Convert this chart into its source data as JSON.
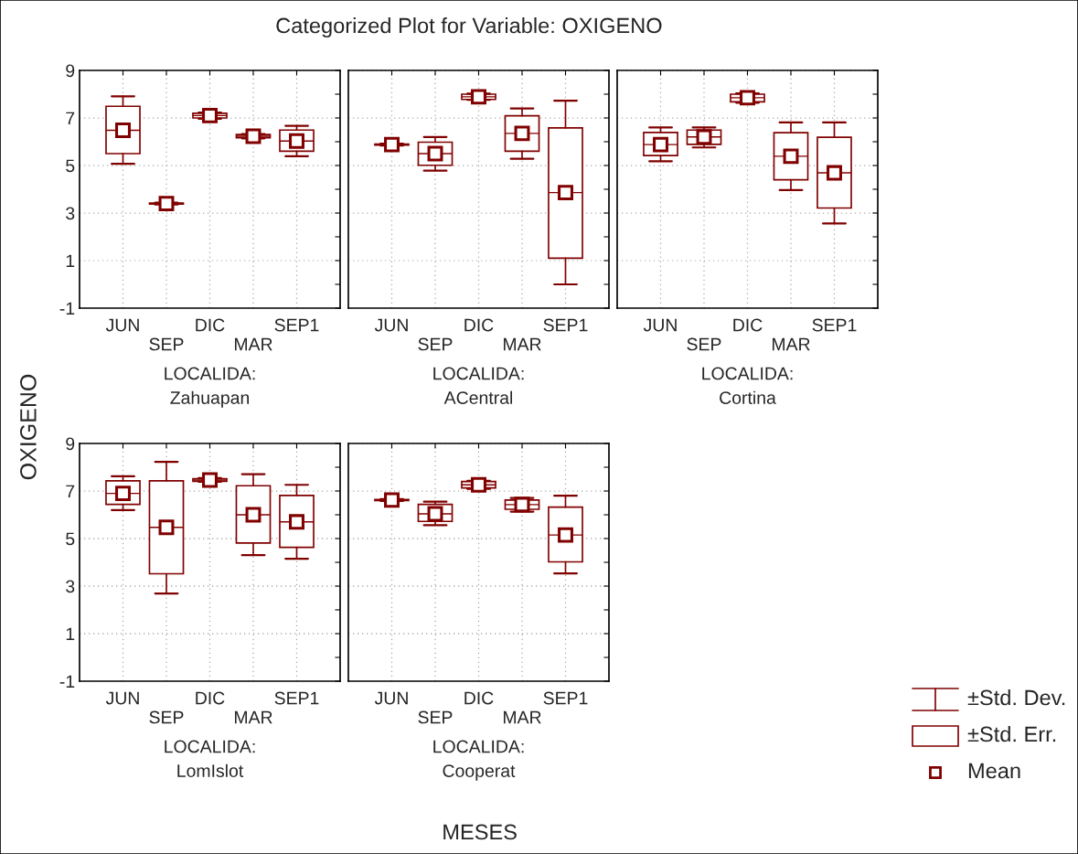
{
  "chart_data": [
    {
      "type": "box",
      "title": "Categorized Plot for Variable: OXIGENO",
      "ylabel": "OXIGENO",
      "xlabel": "LOCALIDA:\nZahuapan",
      "annotations": [
        "MESES"
      ],
      "categories": [
        "JUN",
        "SEP",
        "DIC",
        "MAR",
        "SEP1"
      ],
      "ylim": [
        -1,
        9
      ],
      "yticks": [
        -1,
        {
          "value": 0,
          "label": null
        },
        1,
        {
          "value": 2,
          "label": null
        },
        3,
        {
          "value": 4,
          "label": null
        },
        5,
        {
          "value": 6,
          "label": null
        },
        7,
        {
          "value": 8,
          "label": null
        },
        9
      ],
      "grid": true,
      "marker": "square",
      "series": [
        {
          "color": "#800000",
          "boxes": [
            {
              "low": 5.07,
              "q1": 5.5,
              "median": 6.48,
              "q3": 7.49,
              "high": 7.91,
              "mean": 6.48
            },
            {
              "low": 3.36,
              "q1": 3.38,
              "median": 3.4,
              "q3": 3.42,
              "high": 3.44,
              "mean": 3.4
            },
            {
              "low": 6.97,
              "q1": 7.0,
              "median": 7.1,
              "q3": 7.2,
              "high": 7.23,
              "mean": 7.1
            },
            {
              "low": 6.14,
              "q1": 6.17,
              "median": 6.23,
              "q3": 6.3,
              "high": 6.32,
              "mean": 6.23
            },
            {
              "low": 5.39,
              "q1": 5.6,
              "median": 6.03,
              "q3": 6.49,
              "high": 6.67,
              "mean": 6.03
            }
          ]
        }
      ]
    },
    {
      "type": "box",
      "xlabel": "LOCALIDA:\nACentral",
      "categories": [
        "JUN",
        "SEP",
        "DIC",
        "MAR",
        "SEP1"
      ],
      "ylim": [
        -1,
        9
      ],
      "yticks": [
        -1,
        {
          "value": 0,
          "label": null
        },
        1,
        {
          "value": 2,
          "label": null
        },
        3,
        {
          "value": 4,
          "label": null
        },
        5,
        {
          "value": 6,
          "label": null
        },
        7,
        {
          "value": 8,
          "label": null
        },
        9
      ],
      "grid": true,
      "marker": "square",
      "tick_labels": "x",
      "series": [
        {
          "color": "#800000",
          "boxes": [
            {
              "low": 5.84,
              "q1": 5.86,
              "median": 5.88,
              "q3": 5.9,
              "high": 5.92,
              "mean": 5.88
            },
            {
              "low": 4.78,
              "q1": 5.01,
              "median": 5.5,
              "q3": 5.98,
              "high": 6.2,
              "mean": 5.5
            },
            {
              "low": 7.76,
              "q1": 7.78,
              "median": 7.89,
              "q3": 8.0,
              "high": 8.02,
              "mean": 7.89
            },
            {
              "low": 5.28,
              "q1": 5.6,
              "median": 6.35,
              "q3": 7.09,
              "high": 7.4,
              "mean": 6.35
            },
            {
              "low": 0.0,
              "q1": 1.1,
              "median": 3.86,
              "q3": 6.58,
              "high": 7.73,
              "mean": 3.86
            }
          ]
        }
      ]
    },
    {
      "type": "box",
      "xlabel": "LOCALIDA:\nCortina",
      "categories": [
        "JUN",
        "SEP",
        "DIC",
        "MAR",
        "SEP1"
      ],
      "ylim": [
        -1,
        9
      ],
      "yticks": [
        -1,
        {
          "value": 0,
          "label": null
        },
        1,
        {
          "value": 2,
          "label": null
        },
        3,
        {
          "value": 4,
          "label": null
        },
        5,
        {
          "value": 6,
          "label": null
        },
        7,
        {
          "value": 8,
          "label": null
        },
        9
      ],
      "grid": true,
      "marker": "square",
      "tick_labels": "x",
      "series": [
        {
          "color": "#800000",
          "boxes": [
            {
              "low": 5.18,
              "q1": 5.42,
              "median": 5.88,
              "q3": 6.39,
              "high": 6.6,
              "mean": 5.88
            },
            {
              "low": 5.76,
              "q1": 5.89,
              "median": 6.2,
              "q3": 6.49,
              "high": 6.6,
              "mean": 6.2
            },
            {
              "low": 7.64,
              "q1": 7.68,
              "median": 7.85,
              "q3": 8.0,
              "high": 8.03,
              "mean": 7.85
            },
            {
              "low": 3.97,
              "q1": 4.4,
              "median": 5.39,
              "q3": 6.38,
              "high": 6.81,
              "mean": 5.39
            },
            {
              "low": 2.56,
              "q1": 3.21,
              "median": 4.69,
              "q3": 6.19,
              "high": 6.81,
              "mean": 4.69
            }
          ]
        }
      ]
    },
    {
      "type": "box",
      "xlabel": "LOCALIDA:\nLomIslot",
      "categories": [
        "JUN",
        "SEP",
        "DIC",
        "MAR",
        "SEP1"
      ],
      "ylim": [
        -1,
        9
      ],
      "yticks": [
        -1,
        {
          "value": 0,
          "label": null
        },
        1,
        {
          "value": 2,
          "label": null
        },
        3,
        {
          "value": 4,
          "label": null
        },
        5,
        {
          "value": 6,
          "label": null
        },
        7,
        {
          "value": 8,
          "label": null
        },
        9
      ],
      "grid": true,
      "marker": "square",
      "series": [
        {
          "color": "#800000",
          "boxes": [
            {
              "low": 6.2,
              "q1": 6.44,
              "median": 6.9,
              "q3": 7.43,
              "high": 7.62,
              "mean": 6.9
            },
            {
              "low": 2.69,
              "q1": 3.52,
              "median": 5.47,
              "q3": 7.43,
              "high": 8.23,
              "mean": 5.47
            },
            {
              "low": 7.39,
              "q1": 7.41,
              "median": 7.46,
              "q3": 7.52,
              "high": 7.54,
              "mean": 7.46
            },
            {
              "low": 4.3,
              "q1": 4.81,
              "median": 6.0,
              "q3": 7.22,
              "high": 7.71,
              "mean": 6.0
            },
            {
              "low": 4.15,
              "q1": 4.63,
              "median": 5.7,
              "q3": 6.81,
              "high": 7.26,
              "mean": 5.7
            }
          ]
        }
      ]
    },
    {
      "type": "box",
      "xlabel": "LOCALIDA:\nCooperat",
      "categories": [
        "JUN",
        "SEP",
        "DIC",
        "MAR",
        "SEP1"
      ],
      "ylim": [
        -1,
        9
      ],
      "yticks": [
        -1,
        {
          "value": 0,
          "label": null
        },
        1,
        {
          "value": 2,
          "label": null
        },
        3,
        {
          "value": 4,
          "label": null
        },
        5,
        {
          "value": 6,
          "label": null
        },
        7,
        {
          "value": 8,
          "label": null
        },
        9
      ],
      "grid": true,
      "marker": "square",
      "tick_labels": "x",
      "series": [
        {
          "color": "#800000",
          "boxes": [
            {
              "low": 6.58,
              "q1": 6.6,
              "median": 6.62,
              "q3": 6.64,
              "high": 6.66,
              "mean": 6.62
            },
            {
              "low": 5.56,
              "q1": 5.72,
              "median": 6.04,
              "q3": 6.44,
              "high": 6.55,
              "mean": 6.04
            },
            {
              "low": 7.09,
              "q1": 7.13,
              "median": 7.26,
              "q3": 7.4,
              "high": 7.43,
              "mean": 7.26
            },
            {
              "low": 6.13,
              "q1": 6.23,
              "median": 6.43,
              "q3": 6.62,
              "high": 6.71,
              "mean": 6.43
            },
            {
              "low": 3.53,
              "q1": 4.02,
              "median": 5.15,
              "q3": 6.32,
              "high": 6.8,
              "mean": 5.15
            }
          ]
        }
      ]
    },
    {
      "type": "other",
      "annotations": [
        "±Std. Dev.",
        "±Std. Err.",
        "Mean"
      ]
    }
  ]
}
